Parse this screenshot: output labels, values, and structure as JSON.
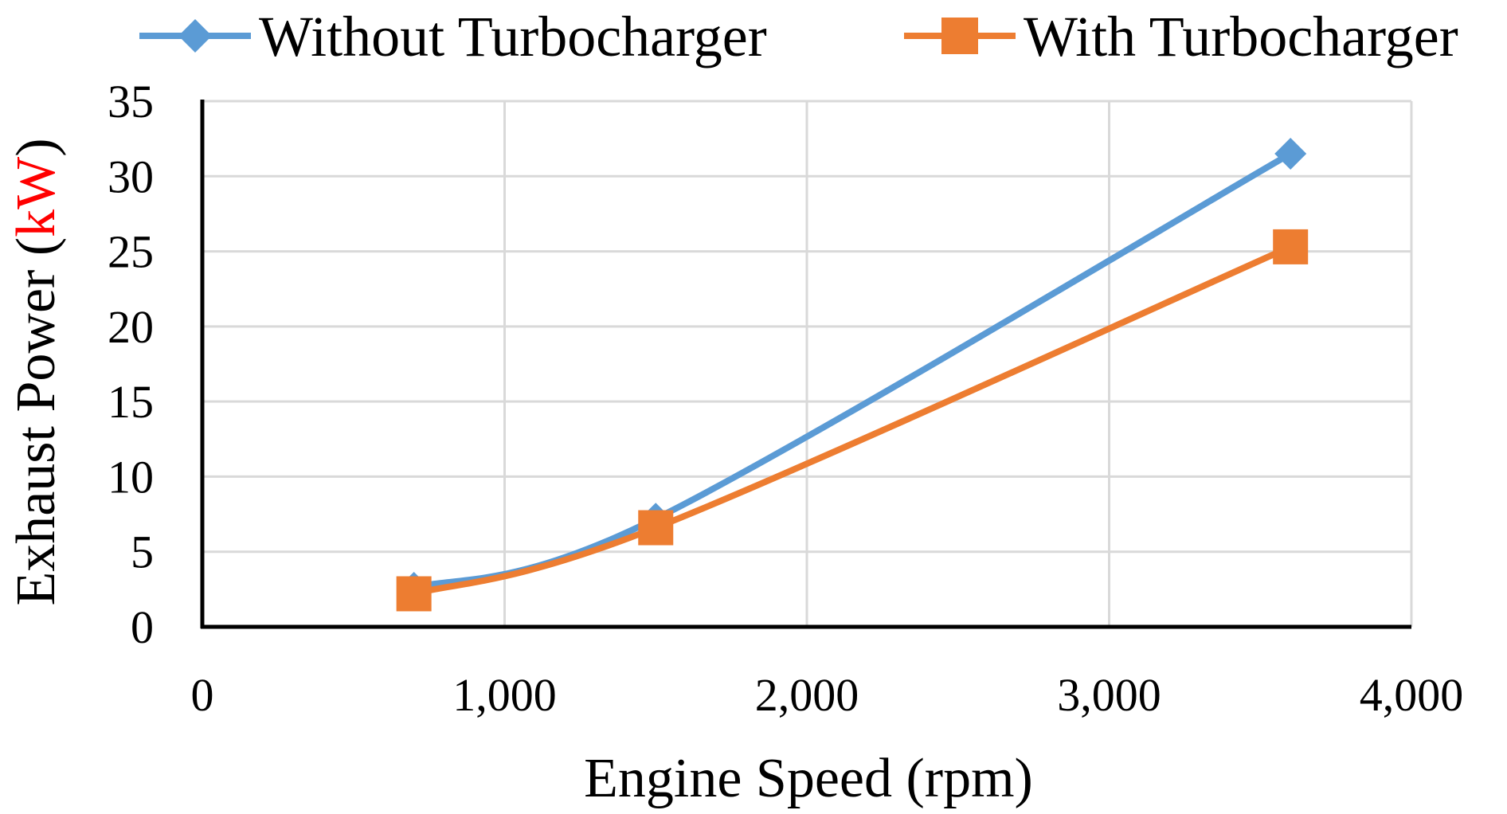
{
  "chart_data": {
    "type": "line",
    "xlabel": "Engine Speed (rpm)",
    "ylabel_parts": [
      "Exhaust Power (",
      "kW",
      ")"
    ],
    "ylabel_colors": [
      "#000000",
      "#ff0000",
      "#000000"
    ],
    "xlim": [
      0,
      4000
    ],
    "ylim": [
      0,
      35
    ],
    "x_ticks": [
      0,
      1000,
      2000,
      3000,
      4000
    ],
    "x_tick_labels": [
      "0",
      "1,000",
      "2,000",
      "3,000",
      "4,000"
    ],
    "y_ticks": [
      0,
      5,
      10,
      15,
      20,
      25,
      30,
      35
    ],
    "y_tick_labels": [
      "0",
      "5",
      "10",
      "15",
      "20",
      "25",
      "30",
      "35"
    ],
    "grid": true,
    "smoothed": true,
    "legend_position": "top",
    "series": [
      {
        "name": "Without Turbocharger",
        "color": "#5b9bd5",
        "marker": "diamond",
        "x": [
          700,
          1500,
          3600
        ],
        "y": [
          2.6,
          7.2,
          31.5
        ]
      },
      {
        "name": "With Turbocharger",
        "color": "#ed7d31",
        "marker": "square",
        "x": [
          700,
          1500,
          3600
        ],
        "y": [
          2.2,
          6.6,
          25.3
        ]
      }
    ]
  }
}
